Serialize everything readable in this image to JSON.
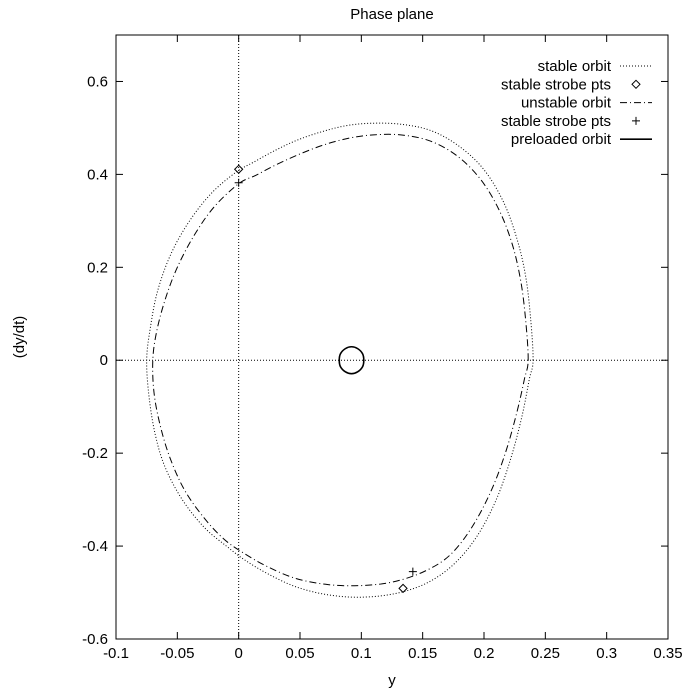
{
  "chart_data": {
    "type": "line",
    "title": "Phase plane",
    "xlabel": "y",
    "ylabel": "(dy/dt)",
    "xlim": [
      -0.1,
      0.35
    ],
    "ylim": [
      -0.6,
      0.7
    ],
    "xticks": [
      "-0.1",
      "-0.05",
      "0",
      "0.05",
      "0.1",
      "0.15",
      "0.2",
      "0.25",
      "0.3",
      "0.35"
    ],
    "yticks": [
      "-0.6",
      "-0.4",
      "-0.2",
      "0",
      "0.2",
      "0.4",
      "0.6"
    ],
    "grid": false,
    "zero_axes": true,
    "legend_position": "top-right",
    "series": [
      {
        "name": "stable orbit",
        "style": "dotted",
        "x": [
          0.24,
          0.238,
          0.234,
          0.227,
          0.216,
          0.2,
          0.18,
          0.157,
          0.132,
          0.108,
          0.088,
          0.068,
          0.048,
          0.03,
          0.012,
          -0.002,
          -0.022,
          -0.04,
          -0.055,
          -0.066,
          -0.072,
          -0.075,
          -0.073,
          -0.068,
          -0.06,
          -0.046,
          -0.028,
          -0.01,
          0.005,
          0.024,
          0.047,
          0.073,
          0.1,
          0.128,
          0.153,
          0.175,
          0.194,
          0.21,
          0.222,
          0.231,
          0.237,
          0.24
        ],
        "y": [
          0.0,
          0.09,
          0.18,
          0.26,
          0.34,
          0.41,
          0.46,
          0.494,
          0.508,
          0.51,
          0.505,
          0.492,
          0.474,
          0.452,
          0.426,
          0.405,
          0.36,
          0.3,
          0.23,
          0.15,
          0.07,
          0.0,
          -0.08,
          -0.16,
          -0.23,
          -0.3,
          -0.36,
          -0.4,
          -0.43,
          -0.46,
          -0.488,
          -0.505,
          -0.51,
          -0.502,
          -0.48,
          -0.44,
          -0.38,
          -0.3,
          -0.21,
          -0.12,
          -0.04,
          0.0
        ]
      },
      {
        "name": "stable strobe pts",
        "style": "diamond",
        "x": [
          0.0,
          0.134
        ],
        "y": [
          0.411,
          -0.491
        ]
      },
      {
        "name": "unstable orbit",
        "style": "dashdot",
        "x": [
          0.236,
          0.234,
          0.23,
          0.223,
          0.212,
          0.197,
          0.178,
          0.156,
          0.132,
          0.11,
          0.09,
          0.07,
          0.05,
          0.03,
          0.014,
          0.0,
          -0.02,
          -0.036,
          -0.05,
          -0.06,
          -0.067,
          -0.07,
          -0.069,
          -0.064,
          -0.056,
          -0.044,
          -0.028,
          -0.012,
          0.004,
          0.024,
          0.047,
          0.073,
          0.1,
          0.126,
          0.151,
          0.172,
          0.19,
          0.206,
          0.218,
          0.227,
          0.233,
          0.236
        ],
        "y": [
          0.0,
          0.085,
          0.17,
          0.25,
          0.325,
          0.39,
          0.44,
          0.472,
          0.485,
          0.485,
          0.478,
          0.464,
          0.444,
          0.42,
          0.398,
          0.38,
          0.33,
          0.27,
          0.2,
          0.13,
          0.06,
          0.0,
          -0.07,
          -0.14,
          -0.21,
          -0.28,
          -0.34,
          -0.385,
          -0.415,
          -0.445,
          -0.47,
          -0.483,
          -0.485,
          -0.477,
          -0.455,
          -0.42,
          -0.36,
          -0.28,
          -0.195,
          -0.11,
          -0.04,
          0.0
        ]
      },
      {
        "name": "stable strobe pts",
        "style": "plus",
        "x": [
          0.0,
          0.142
        ],
        "y": [
          0.382,
          -0.455
        ]
      },
      {
        "name": "preloaded orbit",
        "style": "solid",
        "x": [
          0.102,
          0.101,
          0.097,
          0.092,
          0.087,
          0.083,
          0.082,
          0.083,
          0.087,
          0.092,
          0.097,
          0.101,
          0.102
        ],
        "y": [
          0.0,
          0.014,
          0.025,
          0.029,
          0.025,
          0.014,
          0.0,
          -0.014,
          -0.025,
          -0.029,
          -0.025,
          -0.014,
          0.0
        ]
      }
    ]
  }
}
